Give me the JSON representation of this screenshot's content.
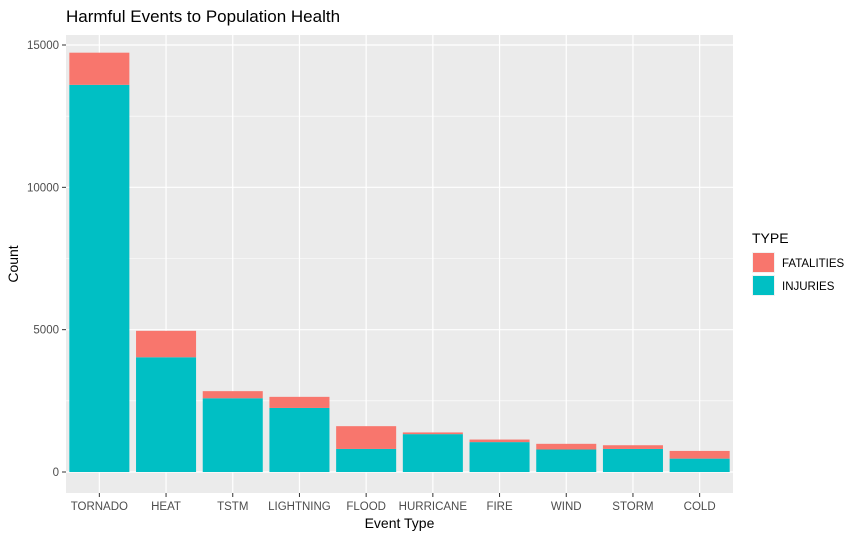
{
  "chart_data": {
    "type": "bar",
    "stacked": true,
    "title": "Harmful Events to Population Health",
    "xlabel": "Event Type",
    "ylabel": "Count",
    "ylim": [
      0,
      15800
    ],
    "yticks": [
      0,
      5000,
      10000,
      15000
    ],
    "ytick_labels": [
      "0",
      "5000",
      "10000",
      "15000"
    ],
    "grid": true,
    "categories": [
      "TORNADO",
      "HEAT",
      "TSTM",
      "LIGHTNING",
      "FLOOD",
      "HURRICANE",
      "FIRE",
      "WIND",
      "STORM",
      "COLD"
    ],
    "series": [
      {
        "name": "INJURIES",
        "color": "#00BFC4",
        "values": [
          13600,
          4030,
          2590,
          2250,
          810,
          1330,
          1050,
          790,
          810,
          470
        ]
      },
      {
        "name": "FATALITIES",
        "color": "#F8766D",
        "values": [
          1130,
          930,
          250,
          390,
          800,
          60,
          90,
          200,
          130,
          270
        ]
      }
    ],
    "legend": {
      "title": "TYPE",
      "position": "right",
      "items": [
        {
          "label": "FATALITIES",
          "color": "#F8766D"
        },
        {
          "label": "INJURIES",
          "color": "#00BFC4"
        }
      ]
    },
    "panel_color": "#EBEBEB",
    "grid_color": "#FFFFFF"
  }
}
